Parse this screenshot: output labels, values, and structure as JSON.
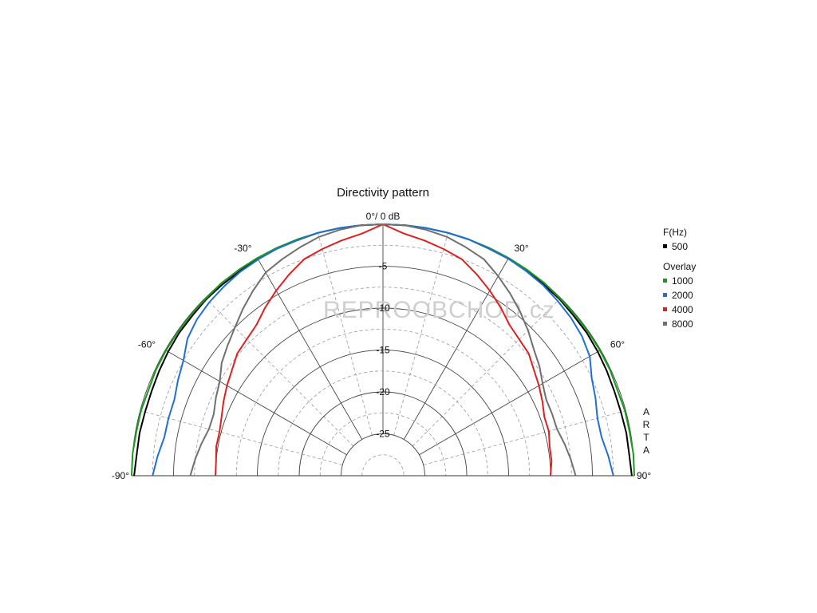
{
  "chart_data": {
    "type": "polar-line",
    "title": "Directivity pattern",
    "subtitle": "",
    "center_label": "0°/ 0 dB",
    "range_db": [
      -30,
      0
    ],
    "radial_ticks": [
      {
        "value": -5,
        "label": "-5"
      },
      {
        "value": -10,
        "label": "-10"
      },
      {
        "value": -15,
        "label": "-15"
      },
      {
        "value": -20,
        "label": "-20"
      },
      {
        "value": -25,
        "label": "-25"
      }
    ],
    "angle_ticks": [
      {
        "value": -90,
        "label": "-90°"
      },
      {
        "value": -60,
        "label": "-60°"
      },
      {
        "value": -30,
        "label": "-30°"
      },
      {
        "value": 30,
        "label": "30°"
      },
      {
        "value": 60,
        "label": "60°"
      },
      {
        "value": 90,
        "label": "90°"
      }
    ],
    "grid": true,
    "angles": [
      -90,
      -85,
      -80,
      -75,
      -70,
      -65,
      -60,
      -55,
      -50,
      -45,
      -40,
      -35,
      -30,
      -25,
      -20,
      -15,
      -10,
      -5,
      0,
      5,
      10,
      15,
      20,
      25,
      30,
      35,
      40,
      45,
      50,
      55,
      60,
      65,
      70,
      75,
      80,
      85,
      90
    ],
    "legend": {
      "position": "right",
      "freq_title": "F(Hz)",
      "overlay_title": "Overlay"
    },
    "series": [
      {
        "name": "500",
        "color": "#000000",
        "group": "main",
        "values": [
          -0.3,
          -0.5,
          -0.5,
          -0.6,
          -0.6,
          -0.5,
          -0.4,
          -0.3,
          -0.3,
          -0.2,
          -0.2,
          -0.2,
          -0.1,
          -0.1,
          -0.1,
          0,
          0,
          0,
          0,
          0,
          0,
          0,
          0,
          -0.1,
          -0.1,
          -0.1,
          -0.2,
          -0.2,
          -0.3,
          -0.3,
          -0.4,
          -0.5,
          -0.6,
          -0.6,
          -0.5,
          -0.5,
          -0.3
        ]
      },
      {
        "name": "1000",
        "color": "#1a9a1a",
        "group": "overlay",
        "values": [
          0,
          0,
          -0.1,
          -0.1,
          -0.2,
          -0.1,
          -0.1,
          -0.1,
          -0.1,
          -0.1,
          0,
          0,
          0,
          0,
          0,
          0,
          0,
          0,
          0,
          0,
          0,
          0,
          0,
          0,
          0,
          0,
          0,
          -0.1,
          -0.1,
          -0.1,
          -0.1,
          -0.1,
          -0.2,
          -0.1,
          -0.1,
          0,
          0
        ]
      },
      {
        "name": "2000",
        "color": "#1f6fd6",
        "group": "overlay",
        "values": [
          -2.5,
          -3,
          -3.5,
          -3.5,
          -3.5,
          -3,
          -2.5,
          -1.5,
          -1,
          -0.7,
          -0.5,
          -0.3,
          -0.2,
          -0.1,
          -0.1,
          0,
          0,
          0,
          0,
          0,
          0,
          0,
          0,
          -0.1,
          -0.1,
          -0.2,
          -0.3,
          -0.5,
          -0.7,
          -1,
          -1.5,
          -2.5,
          -3,
          -3.5,
          -3.5,
          -3,
          -2.5
        ]
      },
      {
        "name": "4000",
        "color": "#e02020",
        "group": "overlay",
        "values": [
          -10,
          -10,
          -9.8,
          -9.8,
          -9.5,
          -9,
          -8.5,
          -8,
          -7.3,
          -7,
          -6.5,
          -5.5,
          -4.5,
          -3.5,
          -2.5,
          -2,
          -1.5,
          -1,
          0,
          -1,
          -1.5,
          -2,
          -2.5,
          -3.5,
          -4.5,
          -5.5,
          -6.5,
          -7,
          -7.3,
          -8,
          -8.5,
          -9,
          -9.5,
          -9.5,
          -9.8,
          -9.8,
          -10
        ]
      },
      {
        "name": "8000",
        "color": "#707070",
        "group": "overlay",
        "values": [
          -7,
          -7.5,
          -8,
          -8.5,
          -8.5,
          -8,
          -7.5,
          -6.5,
          -5.8,
          -5,
          -4,
          -3,
          -2,
          -1.5,
          -1,
          -0.5,
          -0.2,
          0,
          0,
          0,
          -0.2,
          -0.5,
          -1,
          -1.5,
          -2.5,
          -3.5,
          -4.5,
          -5.5,
          -6.5,
          -7.2,
          -8,
          -8.5,
          -8.5,
          -8.5,
          -8,
          -7.5,
          -7
        ]
      }
    ],
    "vertical_mark": "ARTA"
  },
  "watermark": {
    "text": "REPROOBCHOD.cz"
  }
}
